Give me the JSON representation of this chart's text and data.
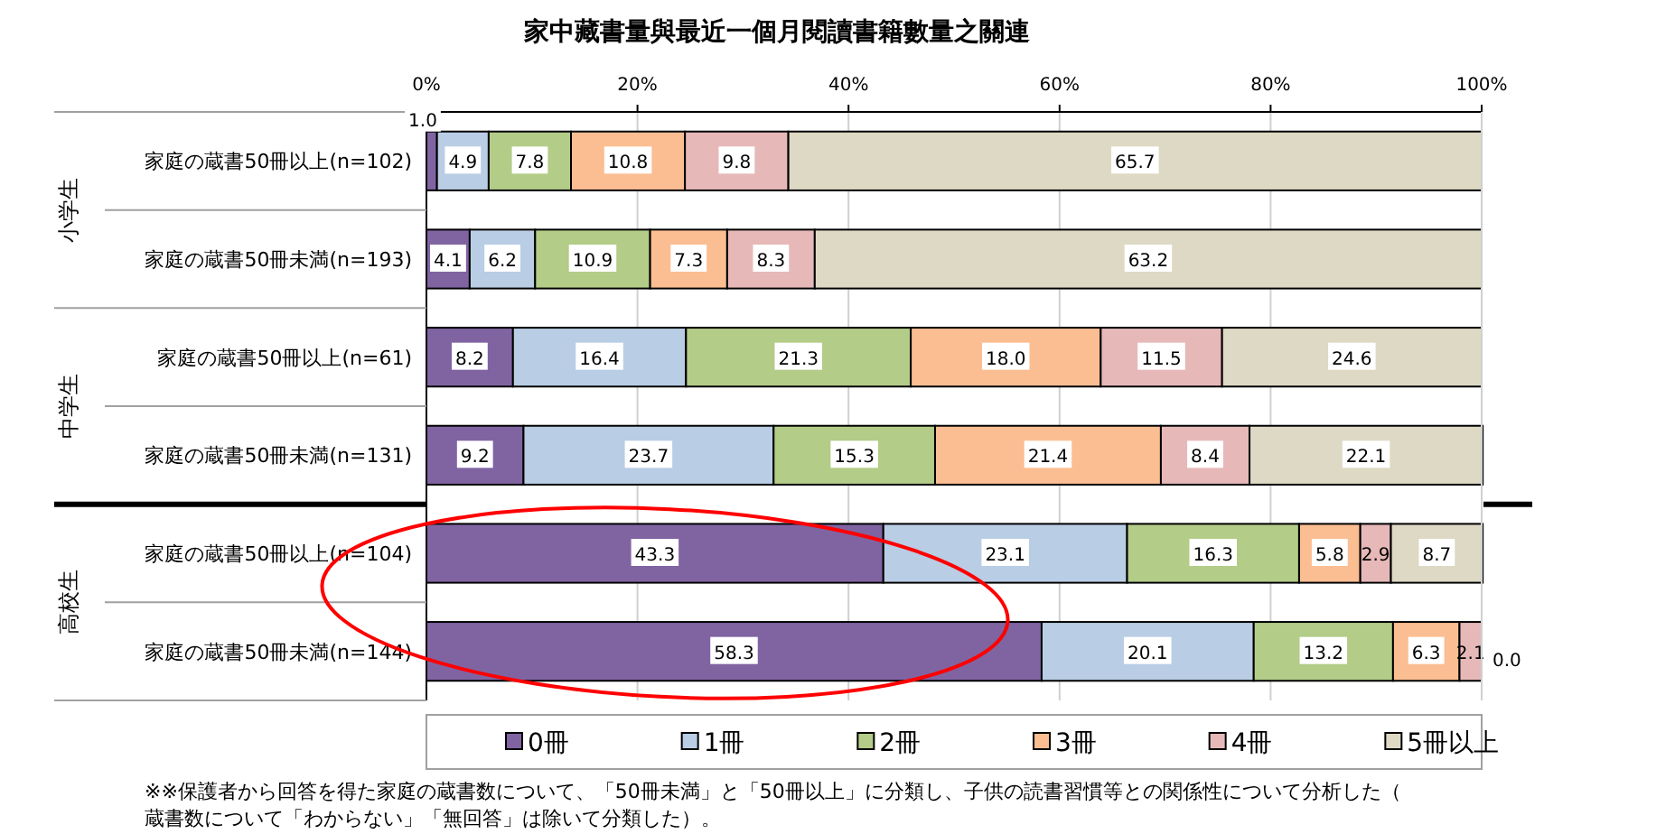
{
  "chart_data": {
    "type": "bar",
    "orientation": "horizontal",
    "stacked": true,
    "title": "家中藏書量與最近一個月閱讀書籍數量之關連",
    "categories": [
      "家庭の蔵書50冊以上(n=102)",
      "家庭の蔵書50冊未満(n=193)",
      "家庭の蔵書50冊以上(n=61)",
      "家庭の蔵書50冊未満(n=131)",
      "家庭の蔵書50冊以上(n=104)",
      "家庭の蔵書50冊未満(n=144)"
    ],
    "series": [
      {
        "name": "0冊",
        "color": "#8064a2",
        "values": [
          1.0,
          4.1,
          8.2,
          9.2,
          43.3,
          58.3
        ],
        "value_labels": [
          "1.0",
          "4.1",
          "8.2",
          "9.2",
          "43.3",
          "58.3"
        ]
      },
      {
        "name": "1冊",
        "color": "#b9cde5",
        "values": [
          4.9,
          6.2,
          16.4,
          23.7,
          23.1,
          20.1
        ],
        "value_labels": [
          "4.9",
          "6.2",
          "16.4",
          "23.7",
          "23.1",
          "20.1"
        ]
      },
      {
        "name": "2冊",
        "color": "#b3cc88",
        "values": [
          7.8,
          10.9,
          21.3,
          15.3,
          16.3,
          13.2
        ],
        "value_labels": [
          "7.8",
          "10.9",
          "21.3",
          "15.3",
          "16.3",
          "13.2"
        ]
      },
      {
        "name": "3冊",
        "color": "#fbbe92",
        "values": [
          10.8,
          7.3,
          18.0,
          21.4,
          5.8,
          6.3
        ],
        "value_labels": [
          "10.8",
          "7.3",
          "18.0",
          "21.4",
          "5.8",
          "6.3"
        ]
      },
      {
        "name": "4冊",
        "color": "#e6b9b8",
        "values": [
          9.8,
          8.3,
          11.5,
          8.4,
          2.9,
          2.1
        ],
        "value_labels": [
          "9.8",
          "8.3",
          "11.5",
          "8.4",
          "2.9",
          "2.1"
        ]
      },
      {
        "name": "5冊以上",
        "color": "#ddd9c4",
        "values": [
          65.7,
          63.2,
          24.6,
          22.1,
          8.7,
          0.0
        ],
        "value_labels": [
          "65.7",
          "63.2",
          "24.6",
          "22.1",
          "8.7",
          "0.0"
        ]
      }
    ],
    "xlim": [
      0,
      100
    ],
    "xticks": [
      {
        "value": 0,
        "label": "0%"
      },
      {
        "value": 20,
        "label": "20%"
      },
      {
        "value": 40,
        "label": "40%"
      },
      {
        "value": 60,
        "label": "60%"
      },
      {
        "value": 80,
        "label": "80%"
      },
      {
        "value": 100,
        "label": "100%"
      }
    ],
    "grid": "x",
    "legend": "bottom",
    "annotations": [
      "小学生",
      "中学生",
      "高校生",
      "※※保護者から回答を得た家庭の蔵書数について、「50冊未満」と「50冊以上」に分類し、子供の読書習慣等との関係性について分析した（蔵書数について「わからない」「無回答」は除いて分類した）。"
    ]
  }
}
